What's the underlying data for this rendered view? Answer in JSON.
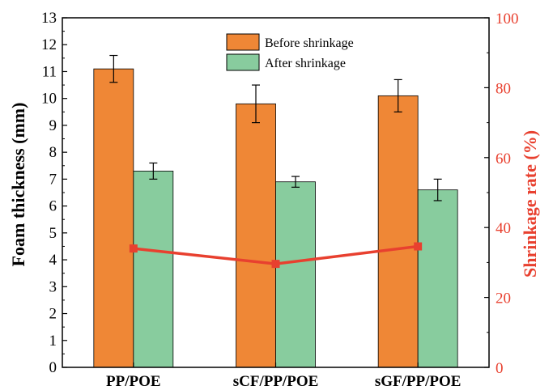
{
  "chart_data": {
    "type": "bar",
    "categories": [
      "PP/POE",
      "sCF/PP/POE",
      "sGF/PP/POE"
    ],
    "series": [
      {
        "name": "Before shrinkage",
        "color": "#ef8736",
        "values": [
          11.1,
          9.8,
          10.1
        ],
        "errors": [
          0.5,
          0.7,
          0.6
        ]
      },
      {
        "name": "After shrinkage",
        "color": "#88cc9e",
        "values": [
          7.3,
          6.9,
          6.6
        ],
        "errors": [
          0.3,
          0.2,
          0.4
        ]
      }
    ],
    "line_series": {
      "type": "line",
      "axis": "right",
      "color": "#e8402f",
      "values": [
        34.0,
        29.6,
        34.6
      ]
    },
    "ylabel": "Foam thickness (mm)",
    "ylim": [
      0,
      13
    ],
    "yticks": [
      "0",
      "1",
      "2",
      "3",
      "4",
      "5",
      "6",
      "7",
      "8",
      "9",
      "10",
      "11",
      "12",
      "13"
    ],
    "y2label": "Shrinkage rate (%)",
    "y2lim": [
      0,
      100
    ],
    "y2ticks": [
      "0",
      "20",
      "40",
      "60",
      "80",
      "100"
    ],
    "y2color": "#e8402f",
    "legend_position": "top-center",
    "grid": false
  }
}
